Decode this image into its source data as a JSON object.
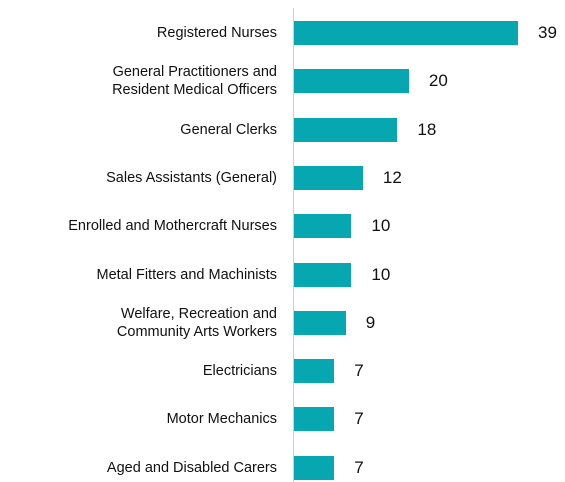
{
  "chart_data": {
    "type": "bar",
    "orientation": "horizontal",
    "categories": [
      "Registered Nurses",
      "General Practitioners and\nResident Medical Officers",
      "General Clerks",
      "Sales Assistants (General)",
      "Enrolled and Mothercraft Nurses",
      "Metal Fitters and Machinists",
      "Welfare, Recreation and\nCommunity Arts Workers",
      "Electricians",
      "Motor Mechanics",
      "Aged and Disabled Carers"
    ],
    "values": [
      39,
      20,
      18,
      12,
      10,
      10,
      9,
      7,
      7,
      7
    ],
    "color": "#06a7b1"
  }
}
